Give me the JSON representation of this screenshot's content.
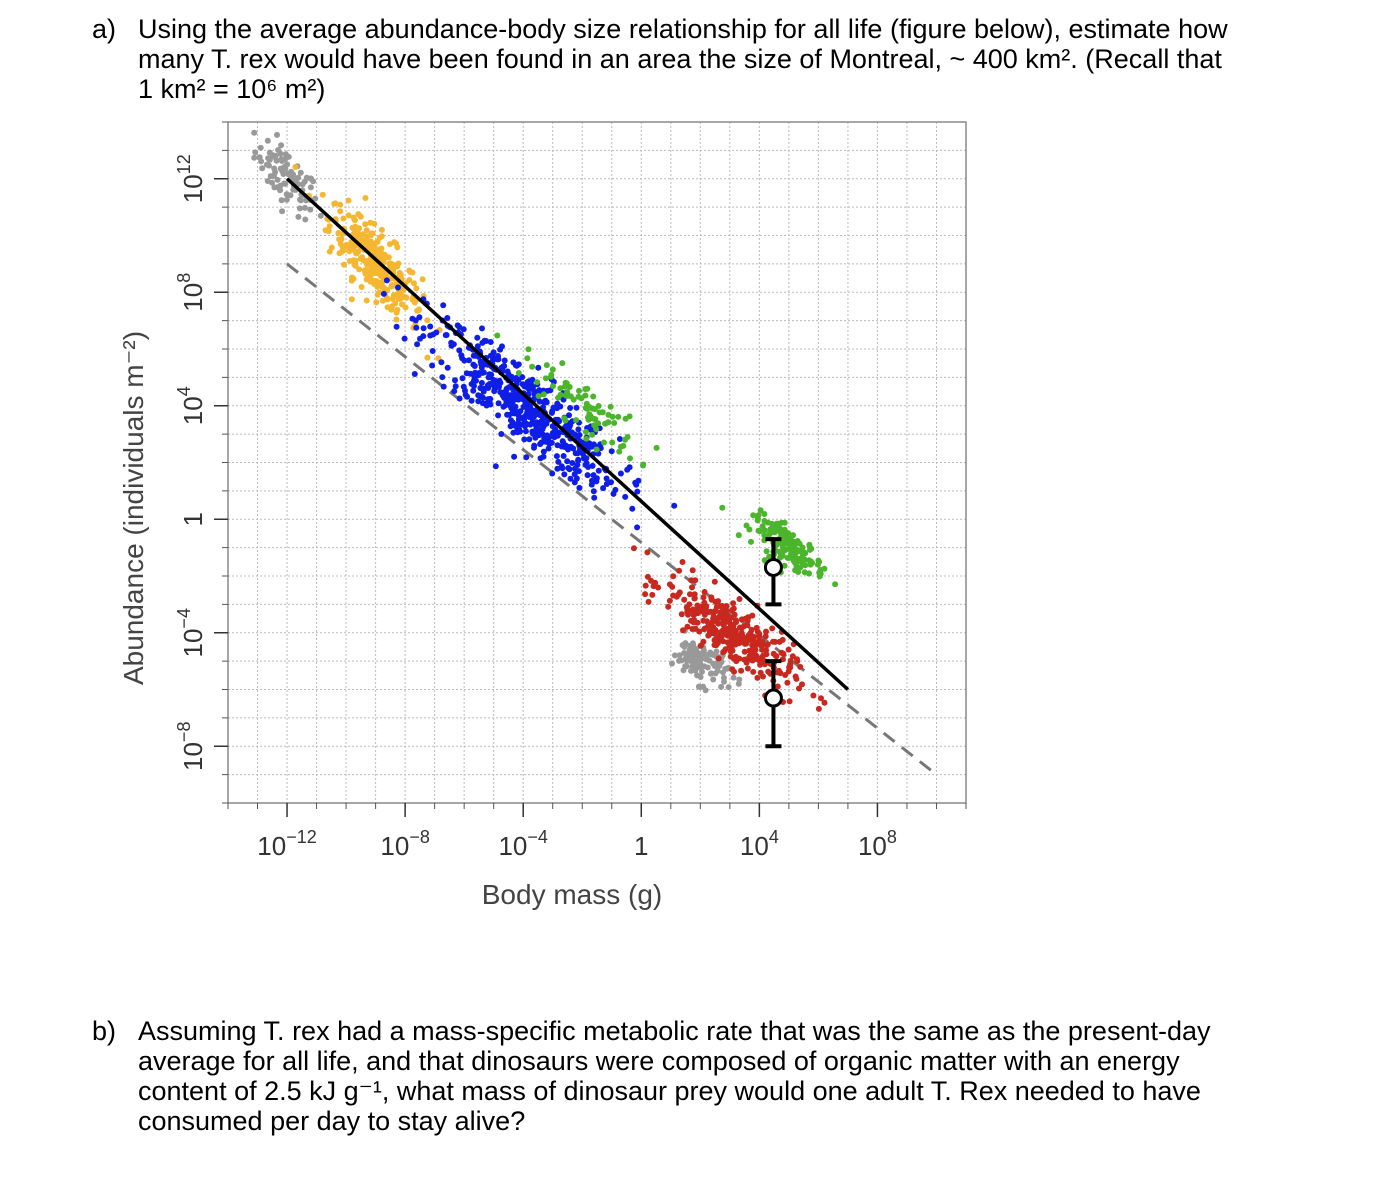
{
  "question_a": {
    "label": "a)",
    "lines": [
      "Using the average abundance-body size relationship for all life (figure below), estimate how",
      "many T. rex would have been found in an area the size of Montreal, ~ 400 km². (Recall that",
      "1 km² = 10⁶ m²)"
    ]
  },
  "question_b": {
    "label": "b)",
    "lines": [
      "Assuming T. rex had a mass-specific metabolic rate that was the same as the present-day",
      "average for all life, and that dinosaurs were composed of organic matter with an energy",
      "content of 2.5 kJ g⁻¹, what mass of dinosaur prey would one adult T. Rex needed to have",
      "consumed per day to stay alive?"
    ]
  },
  "chart_data": {
    "type": "scatter",
    "title": "",
    "xlabel": "Body mass (g)",
    "ylabel": "Abundance (individuals m⁻²)",
    "x_scale": "log10",
    "y_scale": "log10",
    "xlim": [
      1e-14,
      100000000000.0
    ],
    "ylim": [
      1e-10,
      100000000000000.0
    ],
    "x_ticks": [
      {
        "value": 1e-12,
        "base": "10",
        "exp": "−12"
      },
      {
        "value": 1e-08,
        "base": "10",
        "exp": "−8"
      },
      {
        "value": 0.0001,
        "base": "10",
        "exp": "−4"
      },
      {
        "value": 1,
        "base": "1",
        "exp": ""
      },
      {
        "value": 10000.0,
        "base": "10",
        "exp": "4"
      },
      {
        "value": 100000000.0,
        "base": "10",
        "exp": "8"
      }
    ],
    "y_ticks": [
      {
        "value": 1e-08,
        "base": "10",
        "exp": "−8"
      },
      {
        "value": 0.0001,
        "base": "10",
        "exp": "−4"
      },
      {
        "value": 1,
        "base": "1",
        "exp": ""
      },
      {
        "value": 10000.0,
        "base": "10",
        "exp": "4"
      },
      {
        "value": 100000000.0,
        "base": "10",
        "exp": "8"
      },
      {
        "value": 1000000000000.0,
        "base": "10",
        "exp": "12"
      }
    ],
    "grid": true,
    "series": [
      {
        "color": "#999999",
        "cluster": {
          "center": [
            1e-12,
            1000000000000.0
          ],
          "x_spread_decades": 0.9,
          "y_spread_decades": 0.9,
          "slope": -0.9,
          "n": 90
        }
      },
      {
        "color": "#f5b731",
        "cluster": {
          "center": [
            1e-09,
            1000000000.0
          ],
          "x_spread_decades": 1.3,
          "y_spread_decades": 1.1,
          "slope": -1.0,
          "n": 300
        }
      },
      {
        "color": "#0f1ee6",
        "cluster": {
          "center": [
            0.0001,
            10000.0
          ],
          "x_spread_decades": 2.7,
          "y_spread_decades": 1.3,
          "slope": -0.8,
          "n": 520
        }
      },
      {
        "color": "#4bb52c",
        "cluster": {
          "center": [
            0.01,
            10000.0
          ],
          "x_spread_decades": 1.6,
          "y_spread_decades": 0.8,
          "slope": -0.8,
          "n": 80
        }
      },
      {
        "color": "#4bb52c",
        "cluster": {
          "center": [
            100000.0,
            0.1
          ],
          "x_spread_decades": 1.0,
          "y_spread_decades": 0.6,
          "slope": -0.6,
          "n": 160
        }
      },
      {
        "color": "#999999",
        "cluster": {
          "center": [
            100.0,
            1e-05
          ],
          "x_spread_decades": 0.8,
          "y_spread_decades": 0.7,
          "slope": -0.4,
          "n": 110
        }
      },
      {
        "color": "#c8281e",
        "cluster": {
          "center": [
            1000.0,
            0.0001
          ],
          "x_spread_decades": 1.8,
          "y_spread_decades": 1.0,
          "slope": -0.7,
          "n": 330
        }
      }
    ],
    "fit_line": {
      "style": "solid",
      "color": "#000000",
      "x": [
        1e-12,
        10000000.0
      ],
      "y": [
        1000000000000.0,
        1e-06
      ]
    },
    "reference_line": {
      "style": "dashed",
      "color": "#777777",
      "x": [
        1e-12,
        10000000000.0
      ],
      "y": [
        1000000000.0,
        1e-09
      ]
    },
    "error_bars": [
      {
        "x": 30000.0,
        "y": 0.02,
        "y_low": 0.001,
        "y_high": 0.2
      },
      {
        "x": 30000.0,
        "y": 5e-07,
        "y_low": 1e-08,
        "y_high": 1e-05
      }
    ]
  }
}
